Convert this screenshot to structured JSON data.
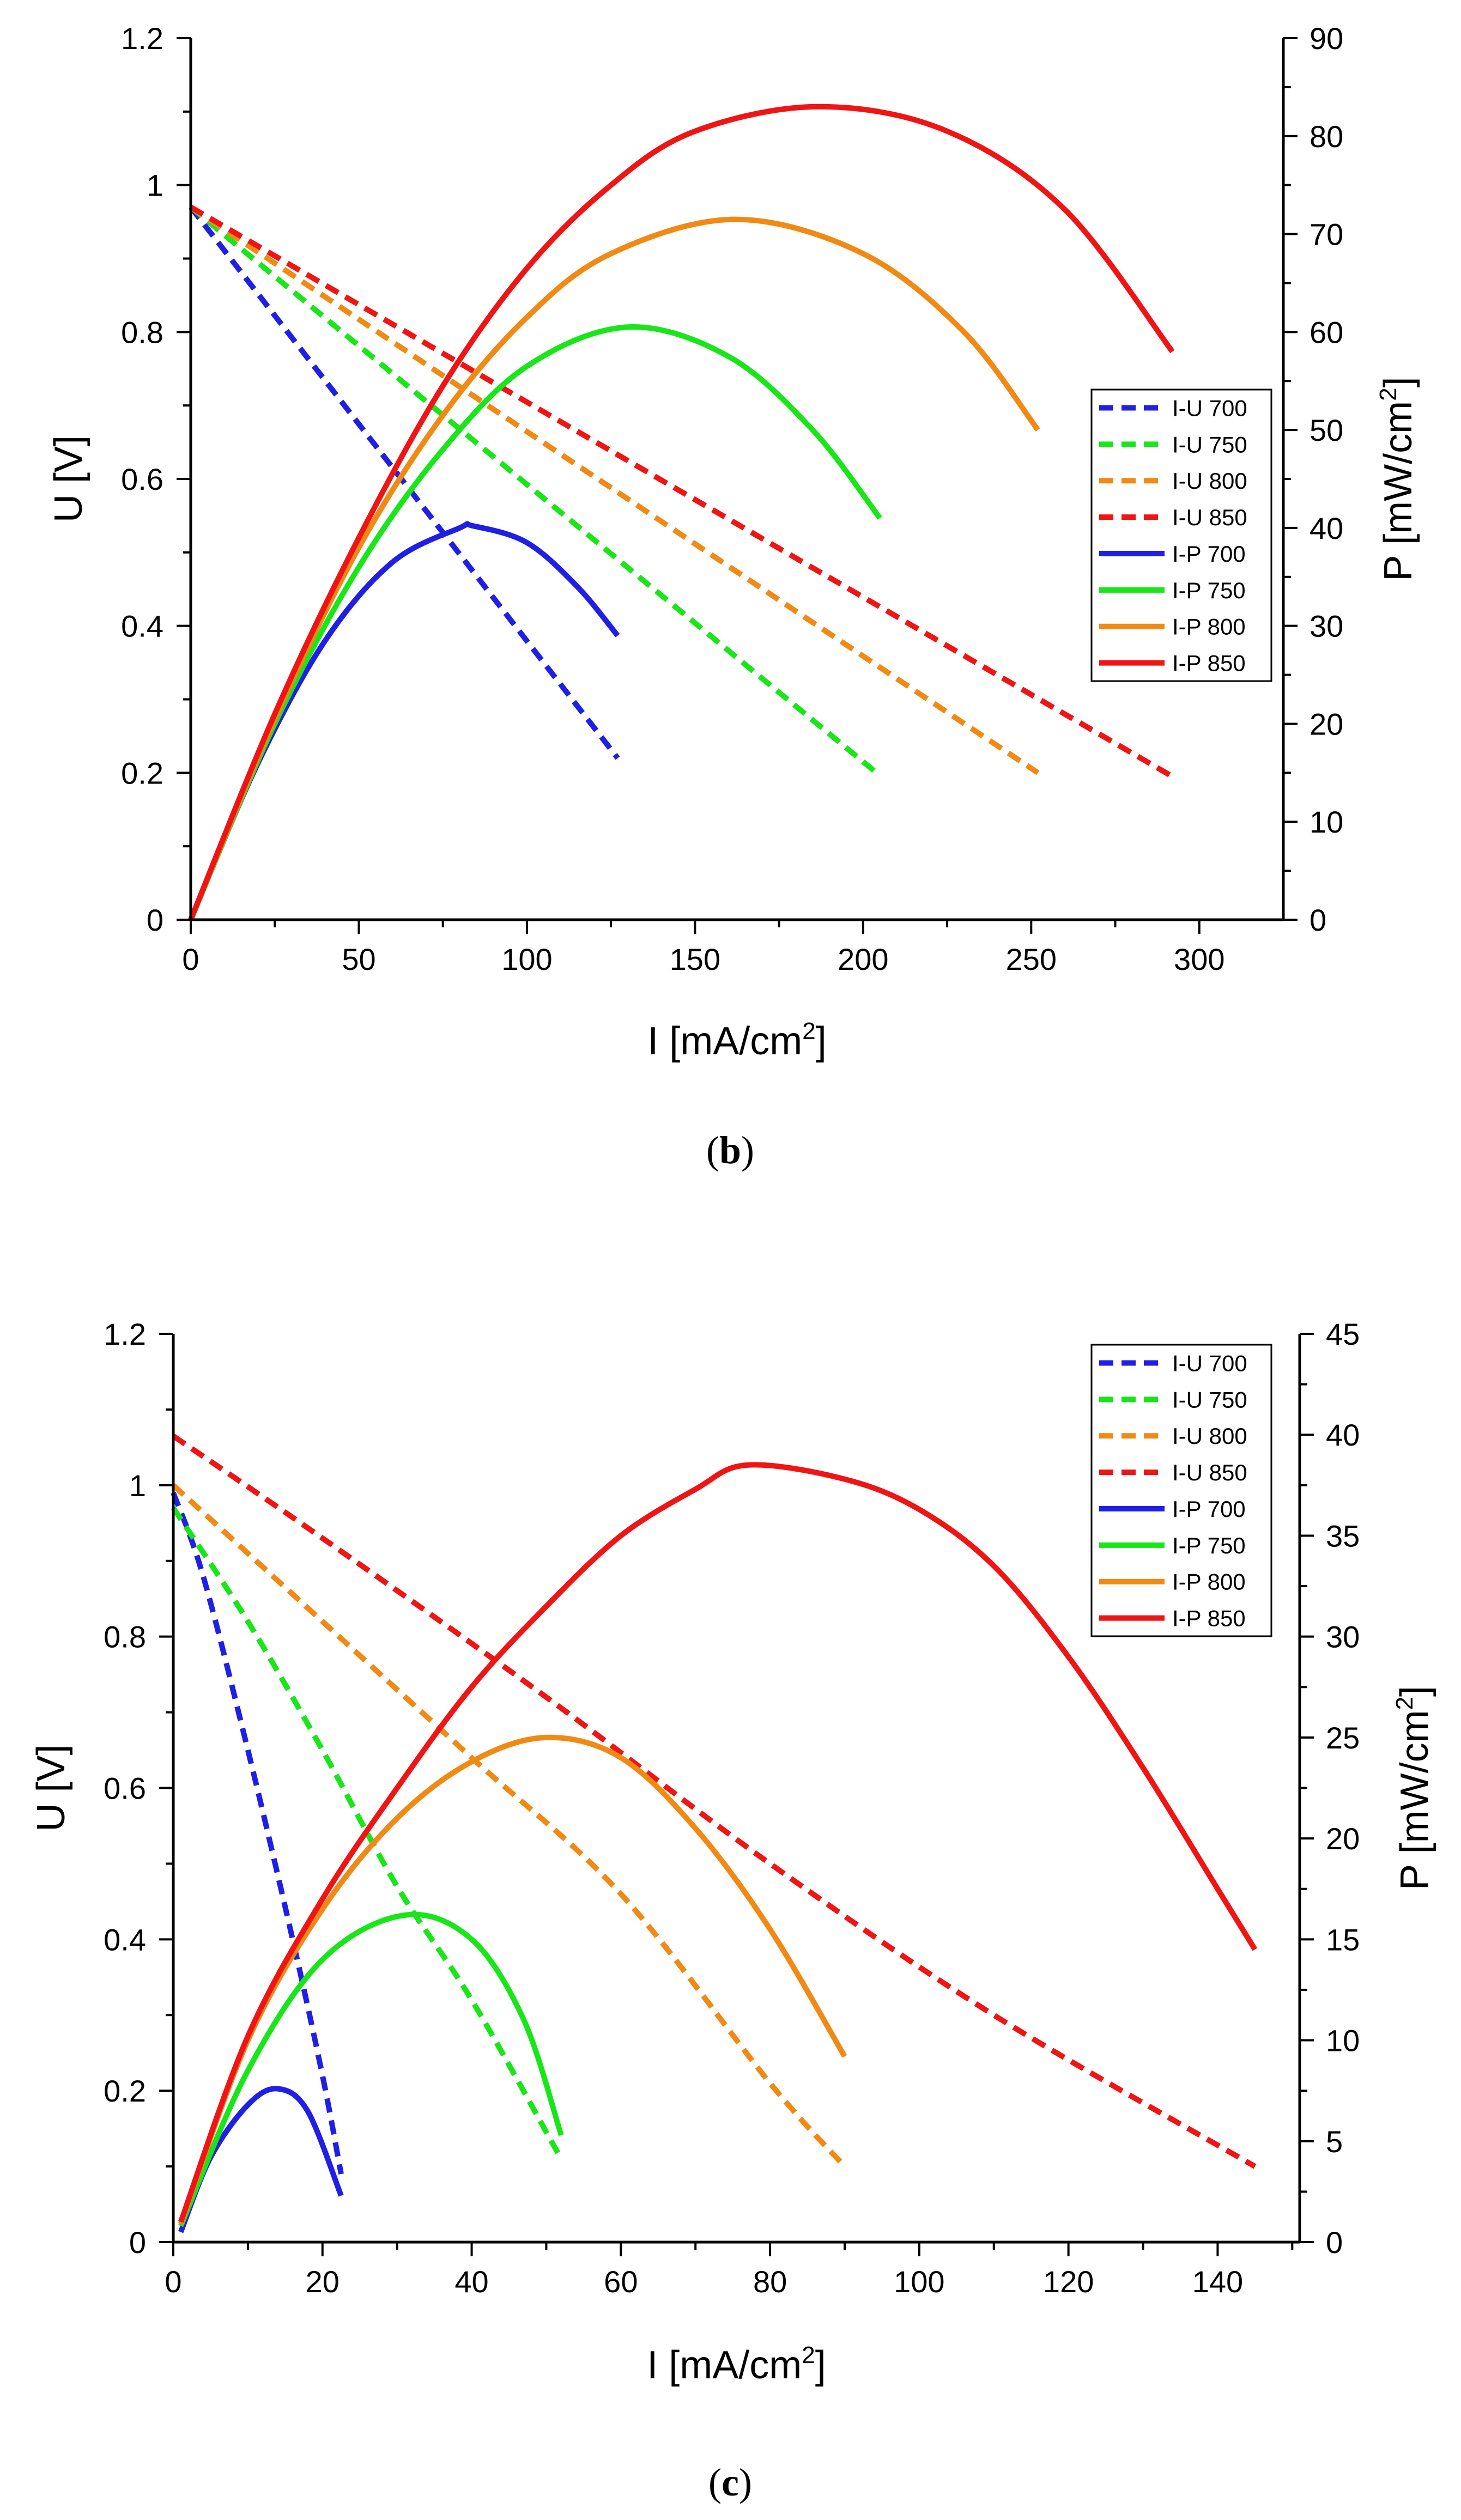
{
  "chart_data": [
    {
      "type": "line",
      "panel_label": "b",
      "xlabel": "I [mA/cm",
      "xlabel_sup": "2",
      "xlabel_end": "]",
      "ylabel": "U [V]",
      "y2label": "P [mW/cm",
      "y2label_sup": "2",
      "y2label_end": "]",
      "xlim": [
        0,
        325
      ],
      "ylim": [
        0,
        1.2
      ],
      "y2lim": [
        0,
        90
      ],
      "xticks": [
        0,
        50,
        100,
        150,
        200,
        250,
        300
      ],
      "yticks": [
        0,
        0.2,
        0.4,
        0.6,
        0.8,
        1,
        1.2
      ],
      "y2ticks": [
        0,
        10,
        20,
        30,
        40,
        50,
        60,
        70,
        80,
        90
      ],
      "legend_position": "right-middle",
      "series": [
        {
          "name": "I-U 700",
          "axis": "left",
          "style": "dashed",
          "color": "#1f1fe6",
          "x": [
            0,
            127
          ],
          "y": [
            0.97,
            0.22
          ]
        },
        {
          "name": "I-U 750",
          "axis": "left",
          "style": "dashed",
          "color": "#19e619",
          "x": [
            0,
            204
          ],
          "y": [
            0.97,
            0.2
          ]
        },
        {
          "name": "I-U 800",
          "axis": "left",
          "style": "dashed",
          "color": "#f08a14",
          "x": [
            0,
            252
          ],
          "y": [
            0.97,
            0.2
          ]
        },
        {
          "name": "I-U 850",
          "axis": "left",
          "style": "dashed",
          "color": "#f01414",
          "x": [
            0,
            292
          ],
          "y": [
            0.97,
            0.195
          ]
        },
        {
          "name": "I-P 700",
          "axis": "right",
          "style": "solid",
          "color": "#1f1fe6",
          "x": [
            0,
            20,
            40,
            60,
            80,
            84,
            100,
            115,
            127
          ],
          "y": [
            0,
            16,
            28.5,
            36.5,
            40,
            40.2,
            38.5,
            34,
            29
          ]
        },
        {
          "name": "I-P 750",
          "axis": "right",
          "style": "solid",
          "color": "#19e619",
          "x": [
            0,
            25,
            50,
            75,
            100,
            130,
            160,
            185,
            205
          ],
          "y": [
            0,
            20,
            36,
            48,
            56.5,
            60.5,
            57.5,
            50,
            41
          ]
        },
        {
          "name": "I-P 800",
          "axis": "right",
          "style": "solid",
          "color": "#f08a14",
          "x": [
            0,
            25,
            50,
            75,
            100,
            125,
            162,
            200,
            230,
            252
          ],
          "y": [
            0,
            20.5,
            38,
            51.5,
            61.5,
            68,
            71.5,
            68,
            60,
            50
          ]
        },
        {
          "name": "I-P 850",
          "axis": "right",
          "style": "solid",
          "color": "#f01414",
          "x": [
            0,
            25,
            50,
            75,
            100,
            125,
            150,
            187,
            225,
            260,
            292
          ],
          "y": [
            0,
            21,
            39,
            54.5,
            66.5,
            75,
            80.5,
            83,
            80.5,
            72.5,
            58
          ]
        }
      ]
    },
    {
      "type": "line",
      "panel_label": "c",
      "xlabel": "I [mA/cm",
      "xlabel_sup": "2",
      "xlabel_end": "]",
      "ylabel": "U [V]",
      "y2label": "P [mW/cm",
      "y2label_sup": "2",
      "y2label_end": "]",
      "xlim": [
        0,
        151
      ],
      "ylim": [
        0,
        1.2
      ],
      "y2lim": [
        0,
        45
      ],
      "xticks": [
        0,
        20,
        40,
        60,
        80,
        100,
        120,
        140
      ],
      "yticks": [
        0,
        0.2,
        0.4,
        0.6,
        0.8,
        1,
        1.2
      ],
      "y2ticks": [
        0,
        5,
        10,
        15,
        20,
        25,
        30,
        35,
        40,
        45
      ],
      "legend_position": "top-right",
      "series": [
        {
          "name": "I-U 700",
          "axis": "left",
          "style": "dashed",
          "color": "#1f1fe6",
          "x": [
            0,
            4,
            10,
            16,
            20,
            22.5
          ],
          "y": [
            0.99,
            0.88,
            0.65,
            0.4,
            0.22,
            0.09
          ]
        },
        {
          "name": "I-U 750",
          "axis": "left",
          "style": "dashed",
          "color": "#19e619",
          "x": [
            0,
            10,
            20,
            30,
            40,
            52
          ],
          "y": [
            0.97,
            0.82,
            0.65,
            0.47,
            0.32,
            0.11
          ]
        },
        {
          "name": "I-U 800",
          "axis": "left",
          "style": "dashed",
          "color": "#f08a14",
          "x": [
            0,
            20,
            40,
            60,
            80,
            90
          ],
          "y": [
            1.0,
            0.82,
            0.64,
            0.46,
            0.21,
            0.1
          ]
        },
        {
          "name": "I-U 850",
          "axis": "left",
          "style": "dashed",
          "color": "#f01414",
          "x": [
            0,
            20,
            50,
            80,
            110,
            145
          ],
          "y": [
            1.065,
            0.93,
            0.72,
            0.5,
            0.3,
            0.1
          ]
        },
        {
          "name": "I-P 700",
          "axis": "right",
          "style": "solid",
          "color": "#1f1fe6",
          "x": [
            1,
            5,
            10,
            14,
            18,
            22.5
          ],
          "y": [
            0.5,
            4.2,
            6.8,
            7.6,
            6.5,
            2.3
          ]
        },
        {
          "name": "I-P 750",
          "axis": "right",
          "style": "solid",
          "color": "#19e619",
          "x": [
            1,
            10,
            20,
            31,
            40,
            47,
            52
          ],
          "y": [
            0.8,
            8.5,
            14,
            16.2,
            15,
            11,
            5.3
          ]
        },
        {
          "name": "I-P 800",
          "axis": "right",
          "style": "solid",
          "color": "#f08a14",
          "x": [
            1,
            10,
            20,
            30,
            40,
            50,
            60,
            70,
            80,
            90
          ],
          "y": [
            0.9,
            10,
            16.5,
            21,
            23.8,
            25,
            24,
            20.5,
            15.5,
            9.2
          ]
        },
        {
          "name": "I-P 850",
          "axis": "right",
          "style": "solid",
          "color": "#f01414",
          "x": [
            1,
            10,
            20,
            30,
            40,
            50,
            60,
            70,
            77,
            90,
            100,
            110,
            120,
            130,
            140,
            145
          ],
          "y": [
            1,
            10.2,
            17,
            22.5,
            27.5,
            31.5,
            35,
            37.3,
            38.5,
            37.8,
            36.3,
            33.5,
            29,
            23.5,
            17.5,
            14.5
          ]
        }
      ]
    }
  ]
}
